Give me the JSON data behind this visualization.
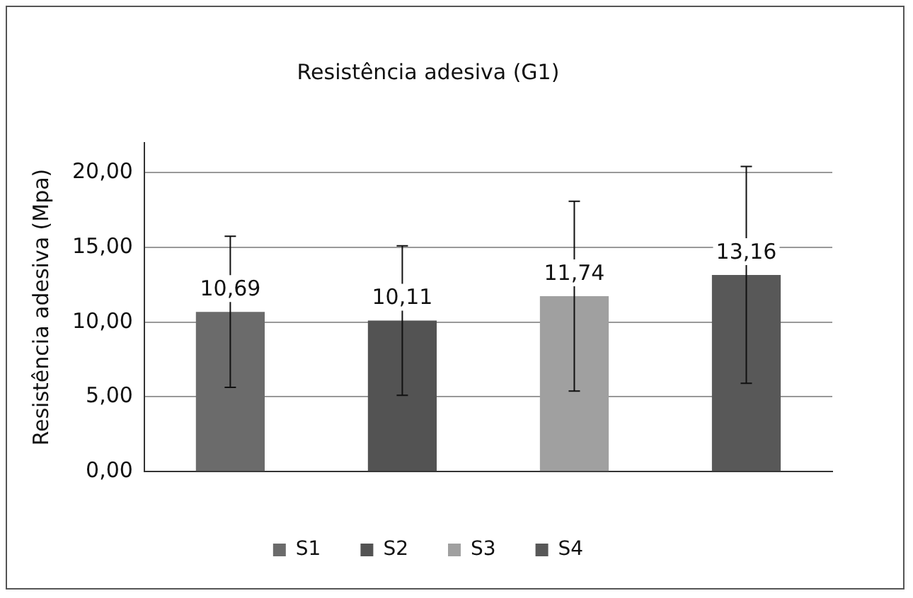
{
  "chart_data": {
    "type": "bar",
    "title": "Resistência adesiva (G1)",
    "ylabel": "Resistência adesiva (Mpa)",
    "categories": [
      null,
      null,
      null,
      null
    ],
    "series": [
      {
        "name": "S1",
        "color": "#6b6b6b",
        "values": [
          10.69,
          null,
          null,
          null
        ],
        "errors": [
          5.05,
          null,
          null,
          null
        ],
        "value_labels": [
          "10,69",
          null,
          null,
          null
        ]
      },
      {
        "name": "S2",
        "color": "#535353",
        "values": [
          null,
          10.11,
          null,
          null
        ],
        "errors": [
          null,
          5.0,
          null,
          null
        ],
        "value_labels": [
          null,
          "10,11",
          null,
          null
        ]
      },
      {
        "name": "S3",
        "color": "#a0a0a0",
        "values": [
          null,
          null,
          11.74,
          null
        ],
        "errors": [
          null,
          null,
          6.35,
          null
        ],
        "value_labels": [
          null,
          null,
          "11,74",
          null
        ]
      },
      {
        "name": "S4",
        "color": "#585858",
        "values": [
          null,
          null,
          null,
          13.16
        ],
        "errors": [
          null,
          null,
          null,
          7.25
        ],
        "value_labels": [
          null,
          null,
          null,
          "13,16"
        ]
      }
    ],
    "ylim": [
      0,
      22
    ],
    "yticks": [
      {
        "value": 0,
        "label": "0,00"
      },
      {
        "value": 5,
        "label": "5,00"
      },
      {
        "value": 10,
        "label": "10,00"
      },
      {
        "value": 15,
        "label": "15,00"
      },
      {
        "value": 20,
        "label": "20,00"
      }
    ],
    "grid": "y",
    "legend": "bottom"
  }
}
